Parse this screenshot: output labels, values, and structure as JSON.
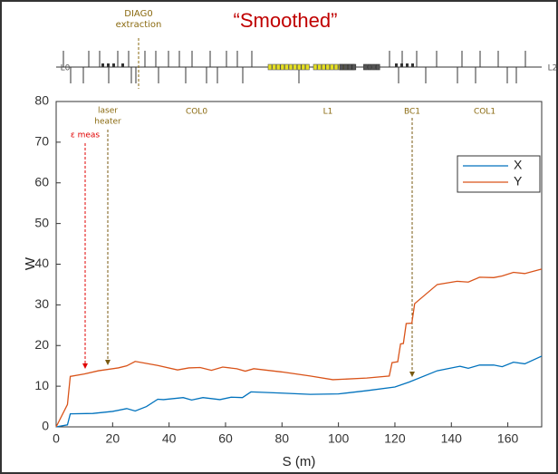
{
  "chart_data": {
    "type": "line",
    "title": "“Smoothed”",
    "x_label": "S (m)",
    "y_label": "W",
    "xlim": [
      0,
      172
    ],
    "ylim": [
      0,
      80
    ],
    "xticks": [
      0,
      20,
      40,
      60,
      80,
      100,
      120,
      140,
      160
    ],
    "yticks": [
      0,
      10,
      20,
      30,
      40,
      50,
      60,
      70,
      80
    ],
    "legend": "upper right",
    "lattice_labels": [
      "L0",
      "L2"
    ],
    "annotations": [
      [
        "DIAG0",
        "extraction"
      ],
      [
        "laser",
        "heater"
      ],
      [
        "COL0"
      ],
      [
        "L1"
      ],
      [
        "BC1"
      ],
      [
        "COL1"
      ],
      [
        "ε meas"
      ]
    ],
    "series": [
      {
        "name": "X",
        "color": "#0072bd",
        "x": [
          0,
          4,
          5,
          13,
          20,
          25,
          28,
          32,
          36,
          38,
          45,
          48,
          52,
          58,
          62,
          66,
          69,
          80,
          90,
          100,
          110,
          120,
          125,
          135,
          143,
          146,
          150,
          155,
          158,
          162,
          166,
          172
        ],
        "values": [
          0,
          0.5,
          3.2,
          3.3,
          3.8,
          4.5,
          3.9,
          5,
          6.8,
          6.7,
          7.2,
          6.6,
          7.2,
          6.7,
          7.3,
          7.2,
          8.6,
          8.3,
          8.0,
          8.1,
          8.9,
          9.8,
          11,
          13.8,
          14.9,
          14.4,
          15.2,
          15.2,
          14.8,
          15.9,
          15.5,
          17.4
        ]
      },
      {
        "name": "Y",
        "color": "#d95319",
        "x": [
          0,
          4,
          5,
          10,
          15,
          22,
          25,
          28,
          36,
          43,
          47,
          51,
          55,
          59,
          64,
          67,
          70,
          80,
          90,
          98,
          110,
          118,
          119,
          121,
          122,
          123,
          124,
          126,
          127,
          135,
          142,
          146,
          150,
          155,
          158,
          162,
          166,
          172
        ],
        "values": [
          0,
          5.5,
          12.4,
          13,
          13.8,
          14.5,
          15,
          16.1,
          15.1,
          14,
          14.5,
          14.6,
          13.9,
          14.7,
          14.3,
          13.7,
          14.3,
          13.5,
          12.5,
          11.6,
          12,
          12.5,
          15.8,
          16,
          20.4,
          20.5,
          25.4,
          25.5,
          30.3,
          35,
          35.8,
          35.6,
          36.8,
          36.7,
          37.1,
          38,
          37.7,
          38.8
        ]
      }
    ]
  }
}
